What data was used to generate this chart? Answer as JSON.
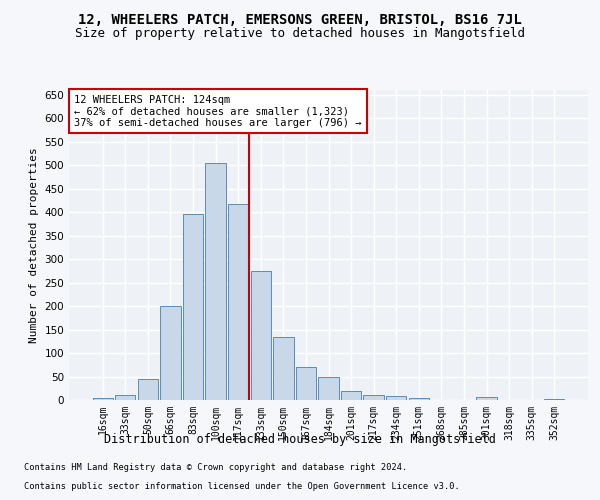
{
  "title1": "12, WHEELERS PATCH, EMERSONS GREEN, BRISTOL, BS16 7JL",
  "title2": "Size of property relative to detached houses in Mangotsfield",
  "xlabel": "Distribution of detached houses by size in Mangotsfield",
  "ylabel": "Number of detached properties",
  "categories": [
    "16sqm",
    "33sqm",
    "50sqm",
    "66sqm",
    "83sqm",
    "100sqm",
    "117sqm",
    "133sqm",
    "150sqm",
    "167sqm",
    "184sqm",
    "201sqm",
    "217sqm",
    "234sqm",
    "251sqm",
    "268sqm",
    "285sqm",
    "301sqm",
    "318sqm",
    "335sqm",
    "352sqm"
  ],
  "values": [
    5,
    10,
    45,
    200,
    395,
    505,
    418,
    275,
    135,
    70,
    50,
    20,
    10,
    8,
    5,
    0,
    0,
    7,
    0,
    0,
    2
  ],
  "bar_color": "#c8d8e8",
  "bar_edge_color": "#5b8db8",
  "annotation_text": "12 WHEELERS PATCH: 124sqm\n← 62% of detached houses are smaller (1,323)\n37% of semi-detached houses are larger (796) →",
  "annotation_box_color": "#ffffff",
  "annotation_box_edge": "#cc0000",
  "vline_color": "#cc0000",
  "vline_x_index": 6.5,
  "ylim": [
    0,
    660
  ],
  "yticks": [
    0,
    50,
    100,
    150,
    200,
    250,
    300,
    350,
    400,
    450,
    500,
    550,
    600,
    650
  ],
  "footer1": "Contains HM Land Registry data © Crown copyright and database right 2024.",
  "footer2": "Contains public sector information licensed under the Open Government Licence v3.0.",
  "bg_color": "#eef2f7",
  "grid_color": "#ffffff",
  "fig_bg": "#f5f7fa",
  "title_fontsize": 10,
  "subtitle_fontsize": 9,
  "bar_width": 0.9
}
